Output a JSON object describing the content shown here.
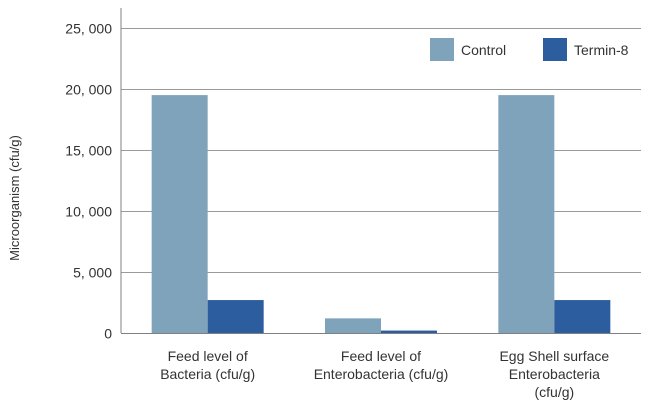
{
  "chart_data": {
    "type": "bar",
    "ylabel": "Microorganism (cfu/g)",
    "xlabel": "",
    "ylim": [
      0,
      25000
    ],
    "yticks": [
      0,
      5000,
      10000,
      15000,
      20000,
      25000
    ],
    "ytick_labels": [
      "0",
      "5, 000",
      "10, 000",
      "15, 000",
      "20, 000",
      "25, 000"
    ],
    "categories": [
      [
        "Feed level of",
        "Bacteria (cfu/g)"
      ],
      [
        "Feed level of",
        "Enterobacteria (cfu/g)"
      ],
      [
        "Egg Shell surface",
        "Enterobacteria",
        "(cfu/g)"
      ]
    ],
    "series": [
      {
        "name": "Control",
        "color": "#7fa3bb",
        "values": [
          19500,
          1200,
          19500
        ]
      },
      {
        "name": "Termin-8",
        "color": "#2c5d9e",
        "values": [
          2700,
          200,
          2700
        ]
      }
    ],
    "grid": true,
    "legend_position": "top-right"
  }
}
